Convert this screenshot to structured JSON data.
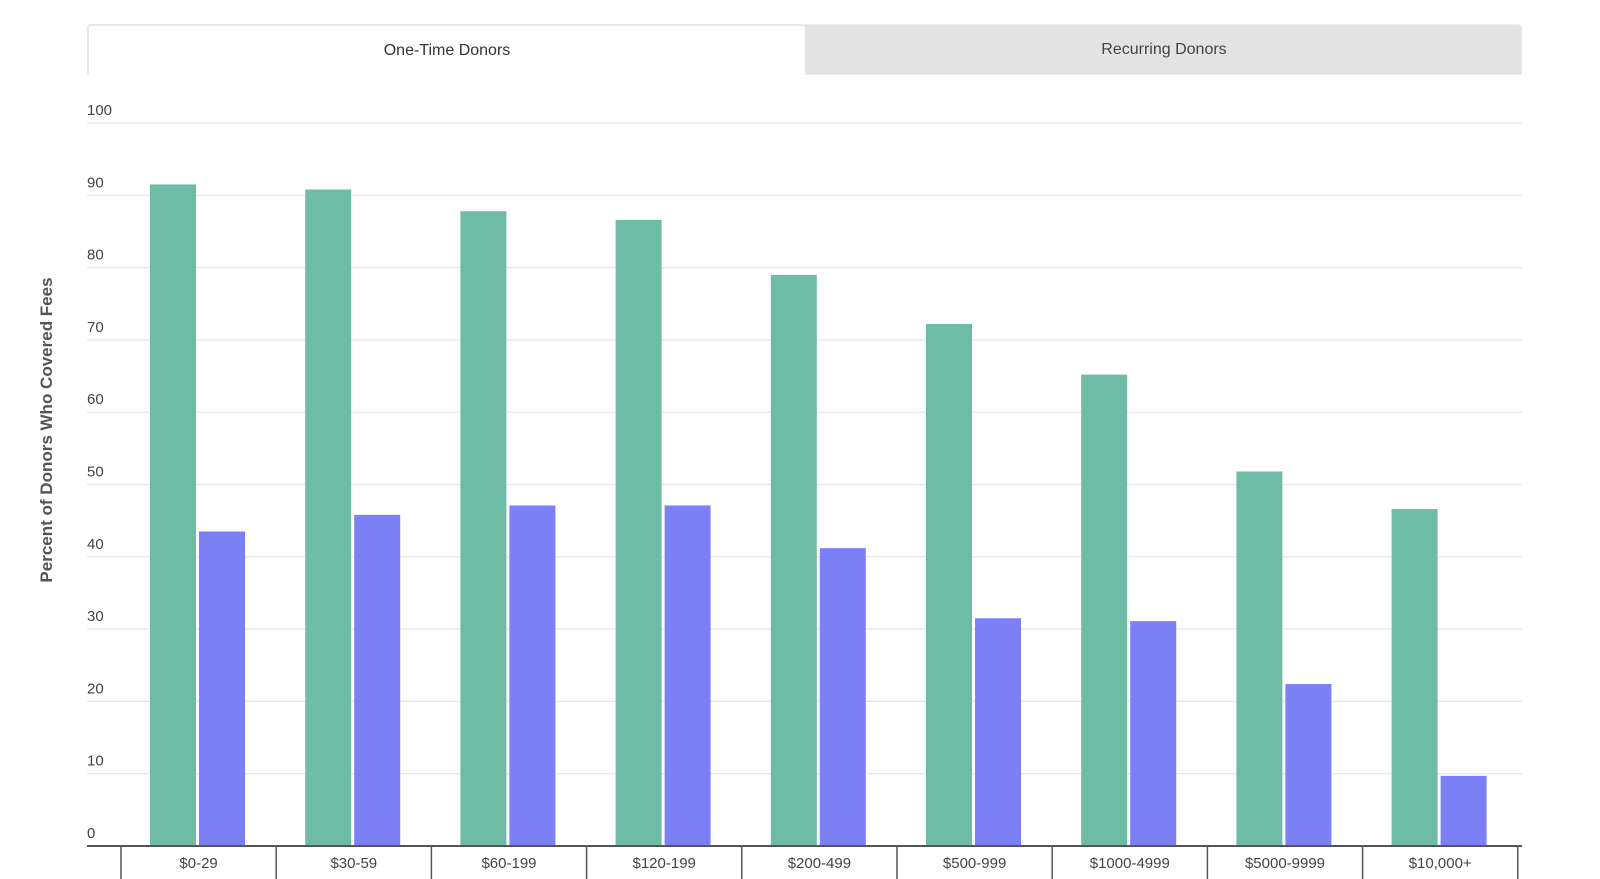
{
  "tabs": [
    {
      "label": "One-Time Donors",
      "active": true
    },
    {
      "label": "Recurring Donors",
      "active": false
    }
  ],
  "colors": {
    "series_green": "#6fbca6",
    "series_purple": "#7b80f7",
    "grid": "#e6e6e6",
    "axis": "#555555",
    "tick_text": "#444444"
  },
  "chart_data": {
    "type": "bar",
    "title": "",
    "xlabel": "",
    "ylabel": "Percent of Donors Who Covered Fees",
    "ylim": [
      0,
      100
    ],
    "yticks": [
      0,
      10,
      20,
      30,
      40,
      50,
      60,
      70,
      80,
      90,
      100
    ],
    "grid": true,
    "categories": [
      "$0-29",
      "$30-59",
      "$60-199",
      "$120-199",
      "$200-499",
      "$500-999",
      "$1000-4999",
      "$5000-9999",
      "$10,000+"
    ],
    "series": [
      {
        "values": [
          91.5,
          90.8,
          87.8,
          86.6,
          79.0,
          72.2,
          65.2,
          51.8,
          46.6
        ]
      },
      {
        "values": [
          43.5,
          45.8,
          47.1,
          47.1,
          41.2,
          31.5,
          31.1,
          22.4,
          9.7
        ]
      }
    ]
  }
}
